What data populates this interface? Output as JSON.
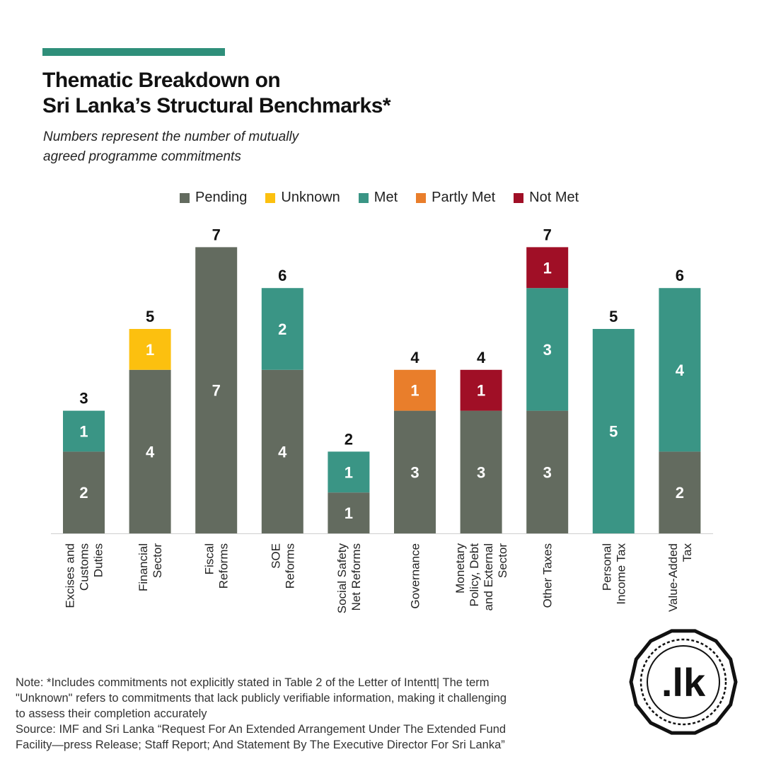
{
  "colors": {
    "accent": "#2f8f7a",
    "pending": "#636b5f",
    "unknown": "#fcc00f",
    "met": "#3a9585",
    "partly_met": "#e97e2b",
    "not_met": "#a00f26"
  },
  "header": {
    "title_line1": "Thematic Breakdown on",
    "title_line2": "Sri Lanka’s Structural Benchmarks*",
    "subtitle_line1": "Numbers represent the number of mutually",
    "subtitle_line2": "agreed programme commitments"
  },
  "chart_data": {
    "type": "bar",
    "stacked": true,
    "title": "Thematic Breakdown on Sri Lanka’s Structural Benchmarks*",
    "subtitle": "Numbers represent the number of mutually agreed programme commitments",
    "categories": [
      [
        "Excises and",
        "Customs",
        "Duties"
      ],
      [
        "Financial",
        "Sector"
      ],
      [
        "Fiscal",
        "Reforms"
      ],
      [
        "SOE",
        "Reforms"
      ],
      [
        "Social Safety",
        "Net Reforms"
      ],
      [
        "Governance"
      ],
      [
        "Monetary",
        "Policy, Debt",
        "and External",
        "Sector"
      ],
      [
        "Other Taxes"
      ],
      [
        "Personal",
        "Income Tax"
      ],
      [
        "Value-Added",
        "Tax"
      ]
    ],
    "series": [
      {
        "name": "Pending",
        "key": "pending",
        "values": [
          2,
          4,
          7,
          4,
          1,
          3,
          3,
          3,
          0,
          2
        ]
      },
      {
        "name": "Unknown",
        "key": "unknown",
        "values": [
          0,
          1,
          0,
          0,
          0,
          0,
          0,
          0,
          0,
          0
        ]
      },
      {
        "name": "Met",
        "key": "met",
        "values": [
          1,
          0,
          0,
          2,
          1,
          0,
          0,
          3,
          5,
          4
        ]
      },
      {
        "name": "Partly Met",
        "key": "partly_met",
        "values": [
          0,
          0,
          0,
          0,
          0,
          1,
          0,
          0,
          0,
          0
        ]
      },
      {
        "name": "Not Met",
        "key": "not_met",
        "values": [
          0,
          0,
          0,
          0,
          0,
          0,
          1,
          1,
          0,
          0
        ]
      }
    ],
    "totals": [
      3,
      5,
      7,
      6,
      2,
      4,
      4,
      7,
      5,
      6
    ],
    "ylim": [
      0,
      7
    ],
    "grid": false,
    "legend_position": "top"
  },
  "footer": {
    "note_line1": "Note: *Includes  commitments not explicitly stated in Table 2 of the Letter of Intentt| The term",
    "note_line2": "\"Unknown\" refers to commitments that lack publicly verifiable information, making it challenging",
    "note_line3": "to assess their completion accurately",
    "source_line1": "Source: IMF and Sri Lanka “Request For An Extended Arrangement Under The Extended Fund",
    "source_line2": "Facility—press Release; Staff Report; And Statement By The Executive Director For Sri Lanka”"
  },
  "logo": {
    "text": ".lk"
  }
}
